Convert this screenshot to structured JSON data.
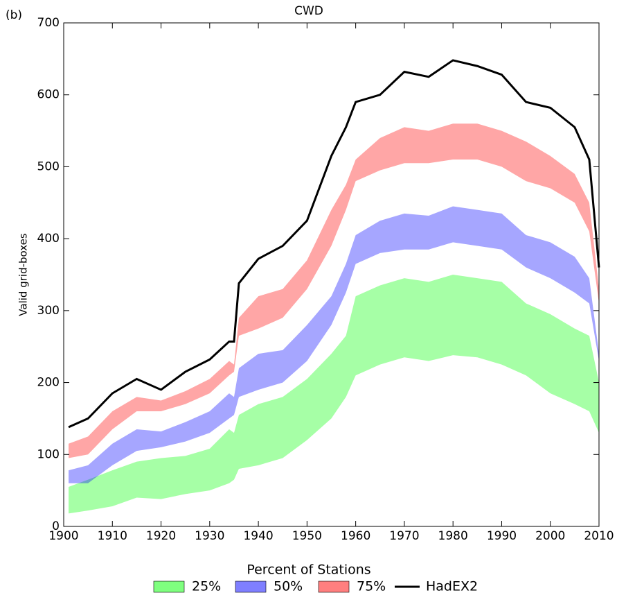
{
  "chart_data": {
    "type": "band",
    "title": "CWD",
    "panel_label": "(b)",
    "y_label": "Valid grid-boxes",
    "legend_title": "Percent of Stations",
    "legend_position": "bottom",
    "xlim": [
      1900,
      2010
    ],
    "ylim": [
      0,
      700
    ],
    "xticks": [
      1900,
      1910,
      1920,
      1930,
      1940,
      1950,
      1960,
      1970,
      1980,
      1990,
      2000,
      2010
    ],
    "yticks": [
      0,
      100,
      200,
      300,
      400,
      500,
      600,
      700
    ],
    "x": [
      1901,
      1905,
      1910,
      1915,
      1920,
      1925,
      1930,
      1934,
      1935,
      1936,
      1940,
      1945,
      1950,
      1955,
      1958,
      1960,
      1965,
      1970,
      1975,
      1980,
      1985,
      1990,
      1995,
      2000,
      2005,
      2008,
      2010
    ],
    "series": [
      {
        "name": "25%",
        "color": "#00ff00",
        "upper": [
          55,
          65,
          78,
          90,
          95,
          98,
          108,
          135,
          130,
          155,
          170,
          180,
          205,
          240,
          265,
          320,
          335,
          345,
          340,
          350,
          345,
          340,
          310,
          295,
          275,
          265,
          200
        ],
        "lower": [
          18,
          22,
          28,
          40,
          38,
          45,
          50,
          60,
          65,
          80,
          85,
          95,
          120,
          150,
          180,
          210,
          225,
          235,
          230,
          238,
          235,
          225,
          210,
          185,
          170,
          160,
          130
        ]
      },
      {
        "name": "50%",
        "color": "#0000ff",
        "upper": [
          78,
          85,
          115,
          135,
          132,
          145,
          160,
          185,
          180,
          220,
          240,
          245,
          280,
          320,
          365,
          405,
          425,
          435,
          432,
          445,
          440,
          435,
          405,
          395,
          375,
          345,
          240
        ],
        "lower": [
          60,
          60,
          85,
          105,
          110,
          118,
          130,
          150,
          155,
          180,
          190,
          200,
          230,
          280,
          325,
          365,
          380,
          385,
          385,
          395,
          390,
          385,
          360,
          345,
          325,
          310,
          230
        ]
      },
      {
        "name": "75%",
        "color": "#ff0000",
        "upper": [
          115,
          125,
          160,
          180,
          175,
          188,
          205,
          230,
          225,
          290,
          320,
          330,
          370,
          440,
          475,
          510,
          540,
          555,
          550,
          560,
          560,
          550,
          535,
          515,
          490,
          450,
          330
        ],
        "lower": [
          95,
          100,
          135,
          160,
          160,
          170,
          185,
          210,
          215,
          265,
          275,
          290,
          330,
          390,
          440,
          480,
          495,
          505,
          505,
          510,
          510,
          500,
          480,
          470,
          450,
          410,
          310
        ]
      },
      {
        "name": "HadEX2",
        "color": "#000000",
        "values": [
          138,
          150,
          185,
          205,
          190,
          215,
          232,
          257,
          257,
          338,
          372,
          390,
          425,
          515,
          555,
          590,
          600,
          632,
          625,
          648,
          640,
          628,
          590,
          582,
          555,
          510,
          360
        ]
      }
    ]
  }
}
